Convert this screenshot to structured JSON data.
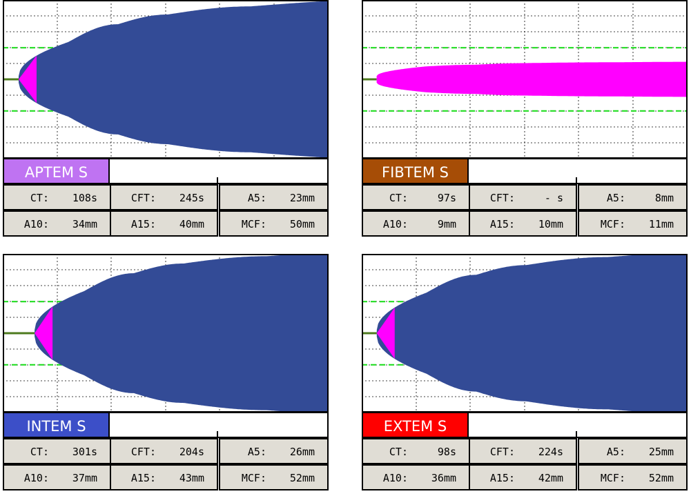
{
  "chart_data": [
    {
      "type": "area",
      "title": "APTEM S",
      "label_color": "#bf73f2",
      "fill_color": "#334b96",
      "params": [
        {
          "key": "CT:",
          "value": "108s"
        },
        {
          "key": "CFT:",
          "value": "245s"
        },
        {
          "key": "A5:",
          "value": "23mm"
        },
        {
          "key": "A10:",
          "value": "34mm"
        },
        {
          "key": "A15:",
          "value": "40mm"
        },
        {
          "key": "MCF:",
          "value": "50mm"
        }
      ],
      "ct": 108,
      "cft": 245,
      "a5": 23,
      "a10": 34,
      "a15": 40,
      "mcf": 50
    },
    {
      "type": "area",
      "title": "FIBTEM S",
      "label_color": "#a64d06",
      "fill_color": "#ff00ff",
      "params": [
        {
          "key": "CT:",
          "value": "97s"
        },
        {
          "key": "CFT:",
          "value": "- s"
        },
        {
          "key": "A5:",
          "value": "8mm"
        },
        {
          "key": "A10:",
          "value": "9mm"
        },
        {
          "key": "A15:",
          "value": "10mm"
        },
        {
          "key": "MCF:",
          "value": "11mm"
        }
      ],
      "ct": 97,
      "cft": null,
      "a5": 8,
      "a10": 9,
      "a15": 10,
      "mcf": 11
    },
    {
      "type": "area",
      "title": "INTEM S",
      "label_color": "#3c4fc8",
      "fill_color": "#334b96",
      "params": [
        {
          "key": "CT:",
          "value": "301s"
        },
        {
          "key": "CFT:",
          "value": "204s"
        },
        {
          "key": "A5:",
          "value": "26mm"
        },
        {
          "key": "A10:",
          "value": "37mm"
        },
        {
          "key": "A15:",
          "value": "43mm"
        },
        {
          "key": "MCF:",
          "value": "52mm"
        }
      ],
      "ct": 301,
      "cft": 204,
      "a5": 26,
      "a10": 37,
      "a15": 43,
      "mcf": 52
    },
    {
      "type": "area",
      "title": "EXTEM S",
      "label_color": "#ff0000",
      "fill_color": "#334b96",
      "params": [
        {
          "key": "CT:",
          "value": "98s"
        },
        {
          "key": "CFT:",
          "value": "224s"
        },
        {
          "key": "A5:",
          "value": "25mm"
        },
        {
          "key": "A10:",
          "value": "36mm"
        },
        {
          "key": "A15:",
          "value": "42mm"
        },
        {
          "key": "MCF:",
          "value": "52mm"
        }
      ],
      "ct": 98,
      "cft": 224,
      "a5": 25,
      "a10": 36,
      "a15": 42,
      "mcf": 52
    }
  ],
  "colors": {
    "grid": "#000000",
    "reference_lines": "#22dd22",
    "baseline": "#4d7a1e",
    "ct_phase": "#ff00ff",
    "param_background": "#e0ddd5"
  }
}
